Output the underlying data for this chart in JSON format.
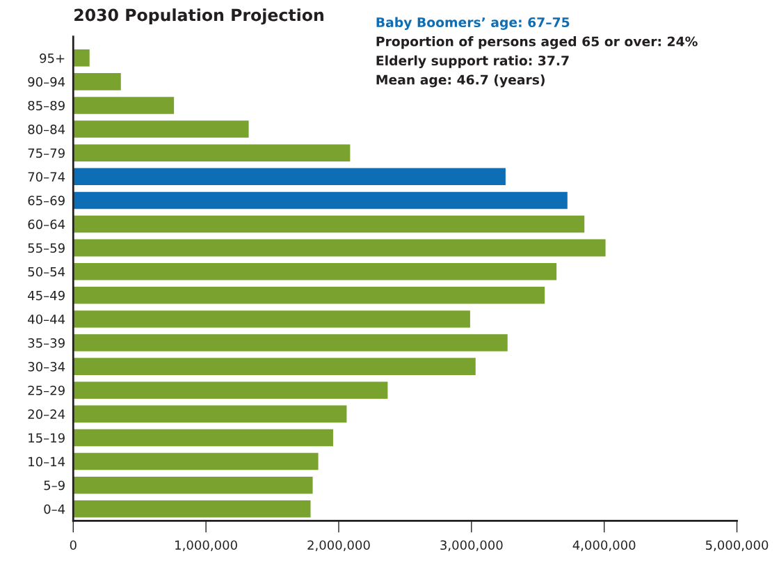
{
  "chart_data": {
    "type": "bar",
    "orientation": "horizontal",
    "title": "2030 Population Projection",
    "categories": [
      "95+",
      "90–94",
      "85–89",
      "80–84",
      "75–79",
      "70–74",
      "65–69",
      "60–64",
      "55–59",
      "50–54",
      "45–49",
      "40–44",
      "35–39",
      "30–34",
      "25–29",
      "20–24",
      "15–19",
      "10–14",
      "5–9",
      "0–4"
    ],
    "values": [
      123000,
      359000,
      759000,
      1322000,
      2086000,
      3257000,
      3723000,
      3851000,
      4010000,
      3641000,
      3552000,
      2990000,
      3272000,
      3031000,
      2369000,
      2060000,
      1958000,
      1846000,
      1804000,
      1788000
    ],
    "colors": [
      "#79a22f",
      "#79a22f",
      "#79a22f",
      "#79a22f",
      "#79a22f",
      "#0d6db5",
      "#0d6db5",
      "#79a22f",
      "#79a22f",
      "#79a22f",
      "#79a22f",
      "#79a22f",
      "#79a22f",
      "#79a22f",
      "#79a22f",
      "#79a22f",
      "#79a22f",
      "#79a22f",
      "#79a22f",
      "#79a22f"
    ],
    "xlim": [
      0,
      5000000
    ],
    "xticks": [
      0,
      {
        "value": 1000000,
        "label": "1,000,000"
      },
      {
        "value": 2000000,
        "label": "2,000,000"
      },
      {
        "value": 3000000,
        "label": "3,000,000"
      },
      {
        "value": 4000000,
        "label": "4,000,000"
      },
      {
        "value": 5000000,
        "label": "5,000,000"
      }
    ],
    "grid": false,
    "annotations": [
      "Baby Boomers’ age: 67–75",
      "Proportion of persons aged 65 or over: 24%",
      "Elderly support ratio: 37.7",
      "Mean age: 46.7 (years)"
    ]
  }
}
